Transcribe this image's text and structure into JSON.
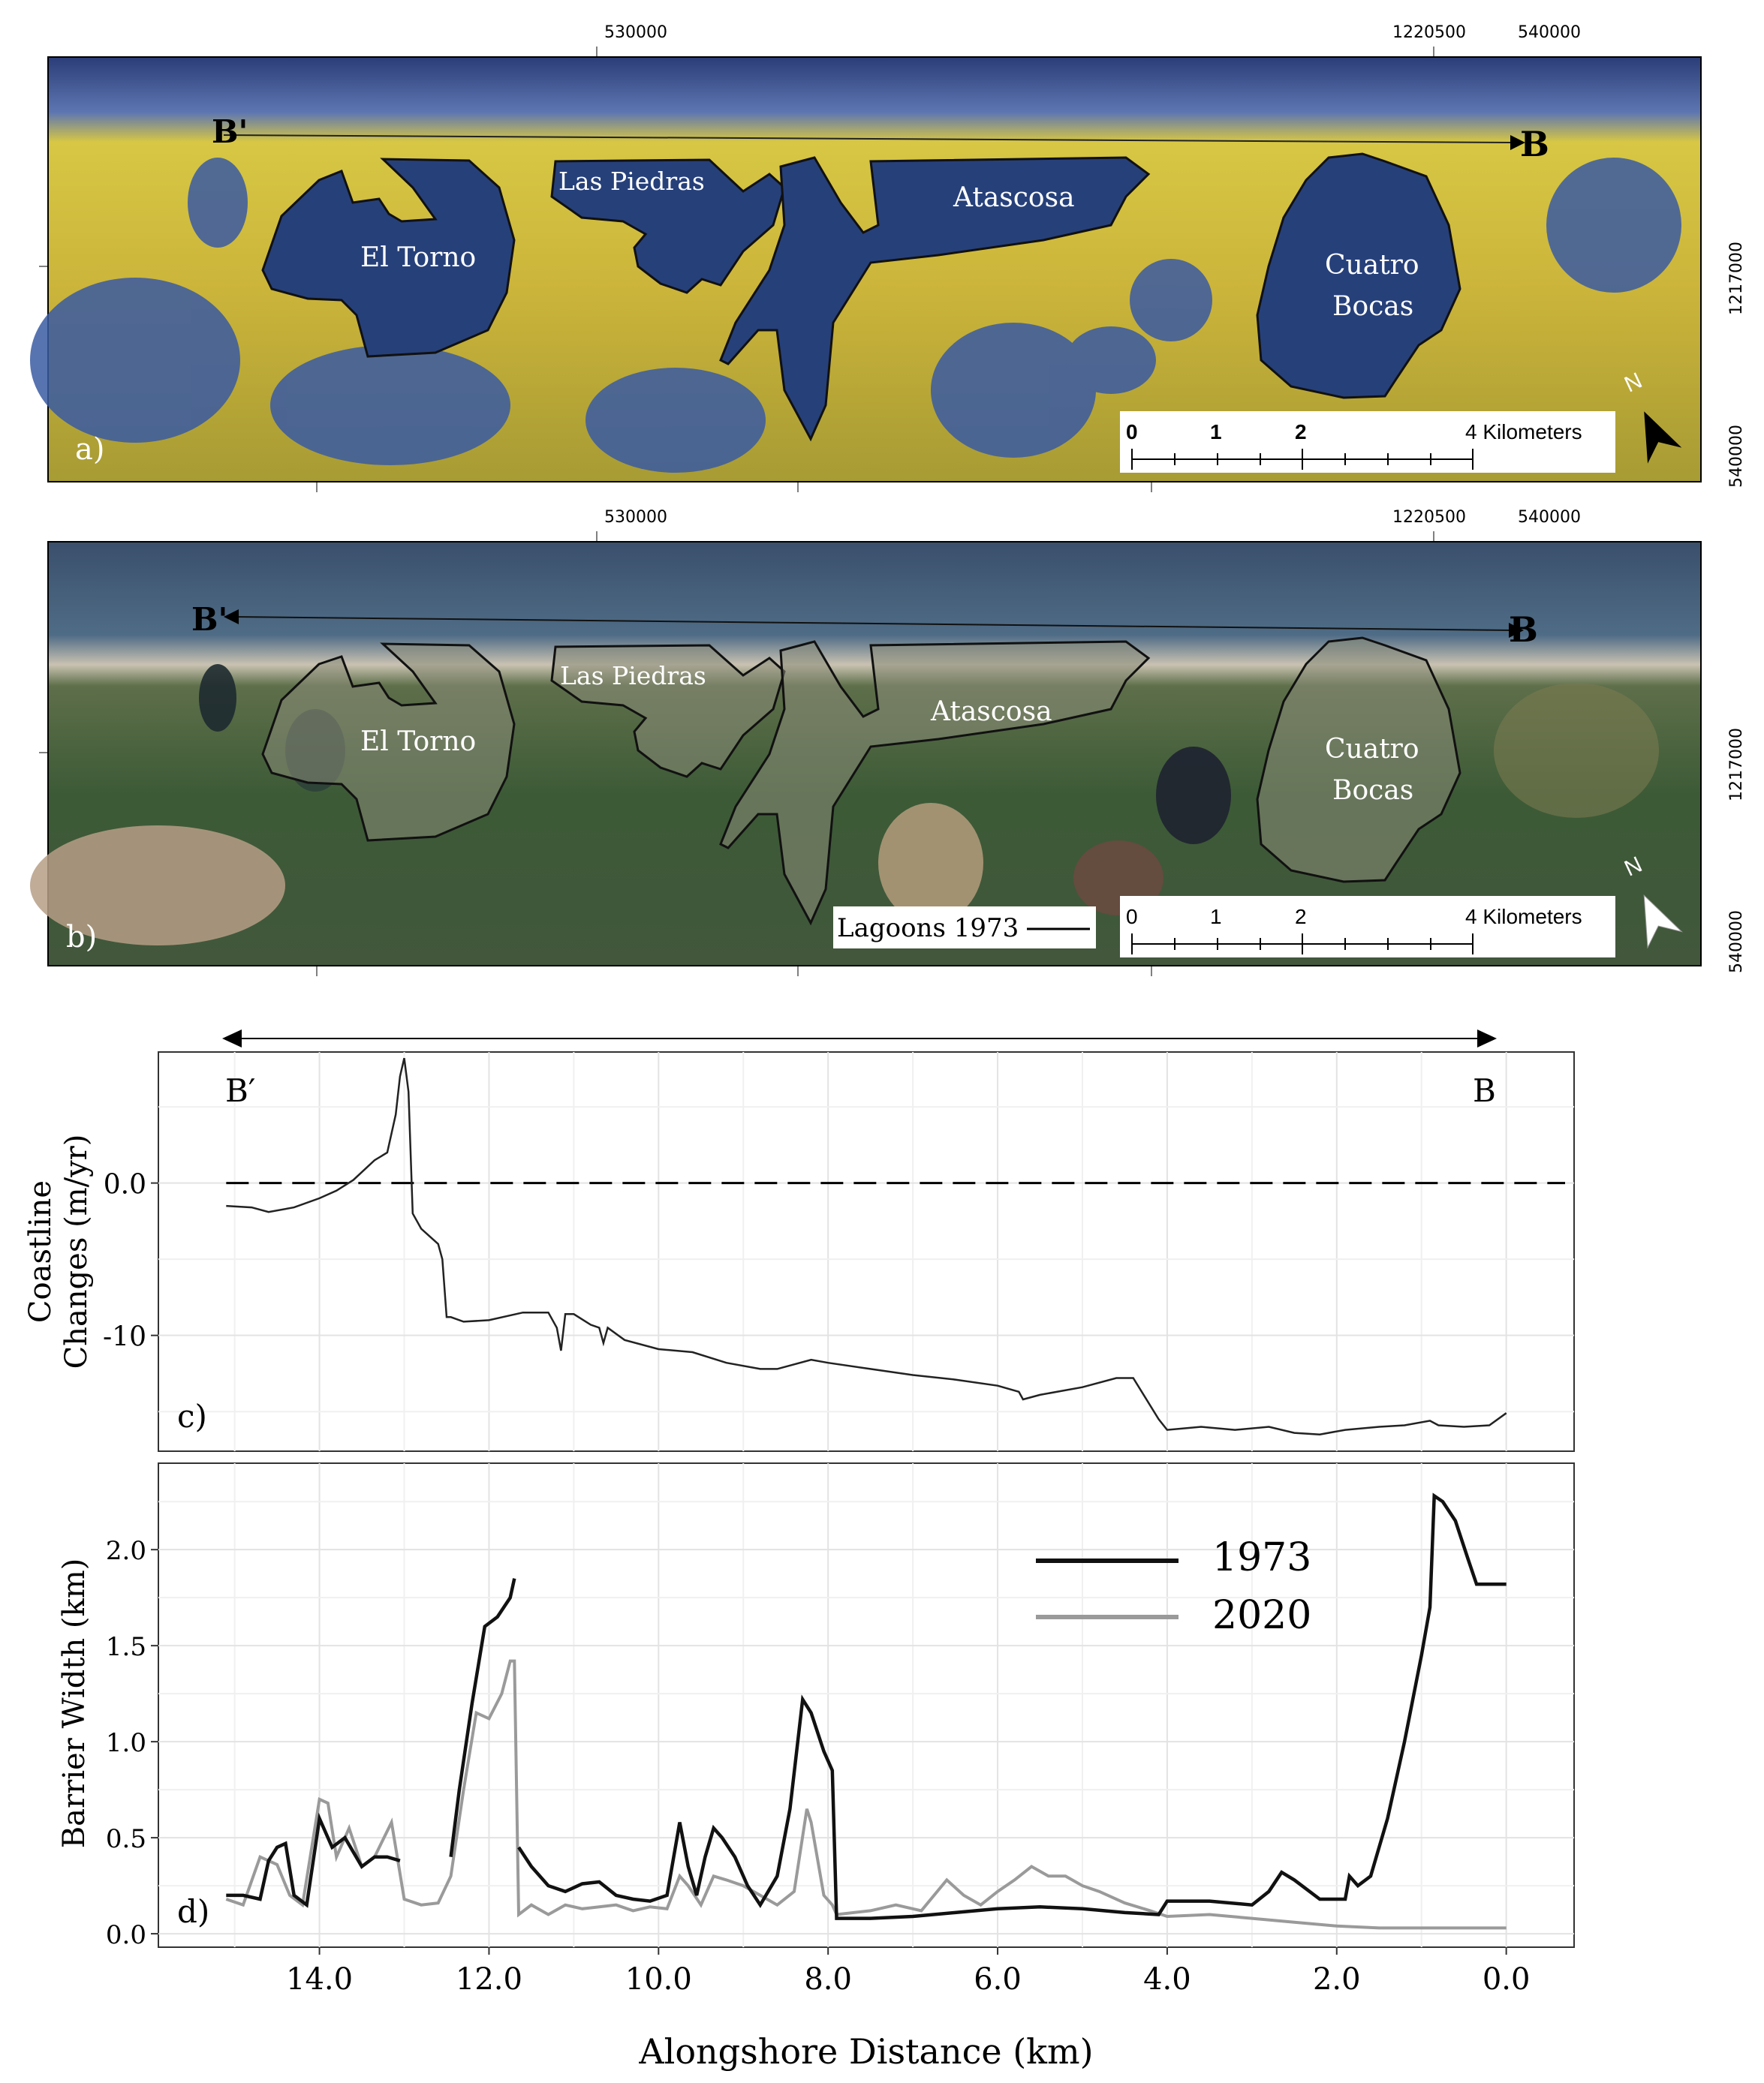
{
  "maps": {
    "a": {
      "panel_letter": "a)",
      "transect_start": "B'",
      "transect_end": "B",
      "lagoons": [
        "El Torno",
        "Las Piedras",
        "Atascosa",
        "Cuatro",
        "Bocas"
      ],
      "top_coords": [
        "530000",
        "1220500",
        "540000"
      ],
      "side_coords": [
        "1217000",
        "540000"
      ],
      "scale_ticks": [
        "0",
        "1",
        "2",
        "4 Kilometers"
      ],
      "north": "N"
    },
    "b": {
      "panel_letter": "b)",
      "transect_start": "B'",
      "transect_end": "B",
      "lagoons": [
        "El Torno",
        "Las Piedras",
        "Atascosa",
        "Cuatro",
        "Bocas"
      ],
      "top_coords": [
        "530000",
        "1220500",
        "540000"
      ],
      "side_coords": [
        "1217000",
        "540000"
      ],
      "scale_ticks": [
        "0",
        "1",
        "2",
        "4 Kilometers"
      ],
      "legend_label": "Lagoons 1973",
      "north": "N"
    }
  },
  "chart_data": [
    {
      "type": "line",
      "panel": "c)",
      "start_label": "B′",
      "end_label": "B",
      "ylabel_lines": [
        "Coastline",
        "Changes (m/yr)"
      ],
      "xlim": [
        15.9,
        -0.8
      ],
      "ylim": [
        -17.6,
        8.6
      ],
      "yticks": [
        0,
        -10
      ],
      "ytick_labels": [
        "0.0",
        "-10"
      ],
      "reference_line_y": 0,
      "series": [
        {
          "color": "#222222",
          "x": [
            15.1,
            14.8,
            14.6,
            14.3,
            14.0,
            13.8,
            13.6,
            13.35,
            13.2,
            13.1,
            13.05,
            13.0,
            12.95,
            12.9,
            12.8,
            12.7,
            12.6,
            12.55,
            12.5,
            12.45,
            12.3,
            12.0,
            11.6,
            11.3,
            11.2,
            11.15,
            11.1,
            11.0,
            10.8,
            10.7,
            10.65,
            10.6,
            10.4,
            10.0,
            9.6,
            9.2,
            8.8,
            8.6,
            8.2,
            8.0,
            7.5,
            7.0,
            6.5,
            6.0,
            5.75,
            5.7,
            5.5,
            5.0,
            4.6,
            4.4,
            4.1,
            4.0,
            3.6,
            3.2,
            2.8,
            2.5,
            2.2,
            1.9,
            1.5,
            1.2,
            0.9,
            0.8,
            0.5,
            0.2,
            0.0
          ],
          "y": [
            -1.5,
            -1.6,
            -1.9,
            -1.6,
            -1.0,
            -0.5,
            0.2,
            1.5,
            2.0,
            4.5,
            7.0,
            8.2,
            6.0,
            -2.0,
            -3.0,
            -3.5,
            -4.0,
            -5.0,
            -8.8,
            -8.8,
            -9.1,
            -9.0,
            -8.5,
            -8.5,
            -9.5,
            -11.0,
            -8.6,
            -8.6,
            -9.3,
            -9.5,
            -10.5,
            -9.5,
            -10.3,
            -10.9,
            -11.1,
            -11.8,
            -12.2,
            -12.2,
            -11.6,
            -11.8,
            -12.2,
            -12.6,
            -12.9,
            -13.3,
            -13.7,
            -14.2,
            -13.9,
            -13.4,
            -12.8,
            -12.8,
            -15.5,
            -16.2,
            -16.0,
            -16.2,
            -16.0,
            -16.4,
            -16.5,
            -16.2,
            -16.0,
            -15.9,
            -15.6,
            -15.9,
            -16.0,
            -15.9,
            -15.1
          ]
        }
      ]
    },
    {
      "type": "line",
      "panel": "d)",
      "xlabel": "Alongshore Distance (km)",
      "ylabel": "Barrier Width (km)",
      "xlim": [
        15.9,
        -0.8
      ],
      "ylim": [
        -0.07,
        2.45
      ],
      "xticks": [
        14,
        12,
        10,
        8,
        6,
        4,
        2,
        0
      ],
      "xtick_labels": [
        "14.0",
        "12.0",
        "10.0",
        "8.0",
        "6.0",
        "4.0",
        "2.0",
        "0.0"
      ],
      "yticks": [
        0,
        0.5,
        1.0,
        1.5,
        2.0
      ],
      "ytick_labels": [
        "0.0",
        "0.5",
        "1.0",
        "1.5",
        "2.0"
      ],
      "legend": "top-right",
      "series": [
        {
          "name": "1973",
          "color": "#111111",
          "x": [
            15.1,
            14.9,
            14.7,
            14.6,
            14.5,
            14.4,
            14.3,
            14.15,
            14.0,
            13.85,
            13.7,
            13.5,
            13.35,
            13.2,
            13.05,
            null,
            12.45,
            12.35,
            12.2,
            12.05,
            11.9,
            11.75,
            11.7,
            null,
            11.65,
            11.5,
            11.3,
            11.1,
            10.9,
            10.7,
            10.5,
            10.3,
            10.1,
            9.9,
            9.75,
            9.65,
            9.55,
            9.45,
            9.35,
            9.25,
            9.1,
            8.95,
            8.8,
            8.6,
            8.45,
            8.3,
            8.2,
            8.05,
            7.95,
            7.9,
            7.5,
            7.0,
            6.5,
            6.0,
            5.5,
            5.0,
            4.5,
            4.1,
            4.0,
            3.5,
            3.0,
            2.8,
            2.65,
            2.5,
            2.2,
            1.9,
            1.85,
            1.75,
            1.6,
            1.4,
            1.2,
            1.0,
            0.9,
            0.85,
            0.75,
            0.6,
            0.45,
            0.35,
            0.2,
            0.0
          ],
          "y": [
            0.2,
            0.2,
            0.18,
            0.38,
            0.45,
            0.47,
            0.2,
            0.15,
            0.6,
            0.45,
            0.5,
            0.35,
            0.4,
            0.4,
            0.38,
            null,
            0.4,
            0.75,
            1.2,
            1.6,
            1.65,
            1.75,
            1.85,
            null,
            0.45,
            0.35,
            0.25,
            0.22,
            0.26,
            0.27,
            0.2,
            0.18,
            0.17,
            0.2,
            0.58,
            0.35,
            0.2,
            0.4,
            0.55,
            0.5,
            0.4,
            0.25,
            0.15,
            0.3,
            0.65,
            1.22,
            1.15,
            0.95,
            0.85,
            0.08,
            0.08,
            0.09,
            0.11,
            0.13,
            0.14,
            0.13,
            0.11,
            0.1,
            0.17,
            0.17,
            0.15,
            0.22,
            0.32,
            0.28,
            0.18,
            0.18,
            0.3,
            0.25,
            0.3,
            0.6,
            1.0,
            1.45,
            1.7,
            2.28,
            2.25,
            2.15,
            1.95,
            1.82,
            1.82,
            1.82
          ]
        },
        {
          "name": "2020",
          "color": "#9a9a9a",
          "x": [
            15.1,
            14.9,
            14.7,
            14.5,
            14.35,
            14.2,
            14.0,
            13.9,
            13.8,
            13.65,
            13.5,
            13.35,
            13.15,
            13.0,
            12.8,
            12.6,
            12.45,
            12.3,
            12.15,
            12.0,
            11.85,
            11.75,
            11.7,
            11.65,
            11.5,
            11.3,
            11.1,
            10.9,
            10.7,
            10.5,
            10.3,
            10.1,
            9.9,
            9.75,
            9.65,
            9.5,
            9.35,
            9.2,
            9.0,
            8.8,
            8.6,
            8.4,
            8.25,
            8.2,
            8.05,
            7.95,
            7.9,
            7.5,
            7.2,
            6.9,
            6.6,
            6.4,
            6.2,
            6.0,
            5.8,
            5.6,
            5.4,
            5.2,
            5.0,
            4.8,
            4.5,
            4.2,
            4.0,
            3.5,
            3.0,
            2.5,
            2.0,
            1.5,
            1.0,
            0.5,
            0.0
          ],
          "y": [
            0.18,
            0.15,
            0.4,
            0.36,
            0.2,
            0.15,
            0.7,
            0.68,
            0.4,
            0.55,
            0.35,
            0.4,
            0.58,
            0.18,
            0.15,
            0.16,
            0.3,
            0.75,
            1.15,
            1.12,
            1.25,
            1.42,
            1.42,
            0.1,
            0.15,
            0.1,
            0.15,
            0.13,
            0.14,
            0.15,
            0.12,
            0.14,
            0.13,
            0.3,
            0.25,
            0.15,
            0.3,
            0.28,
            0.25,
            0.2,
            0.15,
            0.22,
            0.65,
            0.58,
            0.2,
            0.15,
            0.1,
            0.12,
            0.15,
            0.12,
            0.28,
            0.2,
            0.15,
            0.22,
            0.28,
            0.35,
            0.3,
            0.3,
            0.25,
            0.22,
            0.16,
            0.12,
            0.09,
            0.1,
            0.08,
            0.06,
            0.04,
            0.03,
            0.03,
            0.03,
            0.03
          ]
        }
      ]
    }
  ]
}
